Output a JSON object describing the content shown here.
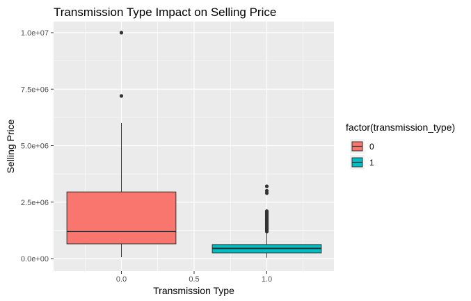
{
  "chart_data": {
    "type": "box",
    "title": "Transmission Type Impact on Selling Price",
    "xlabel": "Transmission Type",
    "ylabel": "Selling Price",
    "xlim": [
      -0.5,
      1.5
    ],
    "ylim": [
      0,
      10000000
    ],
    "x_ticks": [
      0.0,
      0.5,
      1.0
    ],
    "x_tick_labels": [
      "0.0",
      "0.5",
      "1.0"
    ],
    "y_ticks": [
      0,
      2500000,
      5000000,
      7500000,
      10000000
    ],
    "y_tick_labels": [
      "0.0e+00",
      "2.5e+06",
      "5.0e+06",
      "7.5e+06",
      "1.0e+07"
    ],
    "grid": true,
    "legend": {
      "title": "factor(transmission_type)",
      "position": "right",
      "entries": [
        {
          "label": "0",
          "color": "#F8766D"
        },
        {
          "label": "1",
          "color": "#00BFC4"
        }
      ]
    },
    "series": [
      {
        "name": "0",
        "x": 0,
        "color": "#F8766D",
        "whisker_low": 60000,
        "q1": 650000,
        "median": 1200000,
        "q3": 2950000,
        "whisker_high": 6000000,
        "outliers": [
          7200000,
          10000000
        ]
      },
      {
        "name": "1",
        "x": 1,
        "color": "#00BFC4",
        "whisker_low": 40000,
        "q1": 250000,
        "median": 450000,
        "q3": 620000,
        "whisker_high": 1150000,
        "outliers": [
          1200000,
          1250000,
          1300000,
          1350000,
          1400000,
          1450000,
          1500000,
          1550000,
          1600000,
          1650000,
          1700000,
          1750000,
          1800000,
          1850000,
          1900000,
          1950000,
          2000000,
          2050000,
          2100000,
          2900000,
          3000000,
          3200000
        ]
      }
    ]
  }
}
